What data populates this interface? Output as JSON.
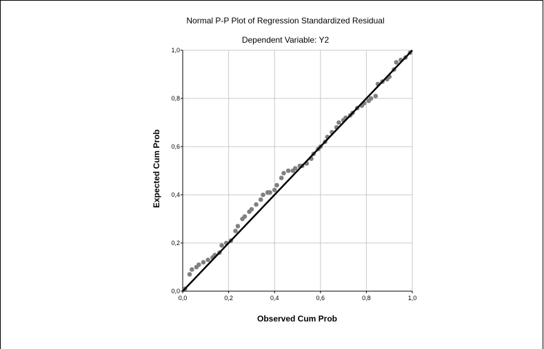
{
  "chart_data": {
    "type": "scatter",
    "title": "Normal P-P Plot of Regression Standardized Residual",
    "subtitle": "Dependent Variable: Y2",
    "xlabel": "Observed Cum Prob",
    "ylabel": "Expected Cum Prob",
    "xlim": [
      0,
      1
    ],
    "ylim": [
      0,
      1
    ],
    "x_ticks": [
      "0,0",
      "0,2",
      "0,4",
      "0,6",
      "0,8",
      "1,0"
    ],
    "y_ticks": [
      "0,0",
      "0,2",
      "0,4",
      "0,6",
      "0,8",
      "1,0"
    ],
    "grid": true,
    "reference_line": [
      [
        0,
        0
      ],
      [
        1,
        1
      ]
    ],
    "point_color": "#808080",
    "line_color": "#000000",
    "points": [
      [
        0.01,
        0.01
      ],
      [
        0.03,
        0.07
      ],
      [
        0.04,
        0.09
      ],
      [
        0.06,
        0.1
      ],
      [
        0.07,
        0.11
      ],
      [
        0.09,
        0.12
      ],
      [
        0.11,
        0.13
      ],
      [
        0.13,
        0.14
      ],
      [
        0.14,
        0.15
      ],
      [
        0.16,
        0.16
      ],
      [
        0.17,
        0.19
      ],
      [
        0.19,
        0.2
      ],
      [
        0.21,
        0.21
      ],
      [
        0.23,
        0.25
      ],
      [
        0.24,
        0.27
      ],
      [
        0.26,
        0.3
      ],
      [
        0.27,
        0.31
      ],
      [
        0.29,
        0.33
      ],
      [
        0.3,
        0.34
      ],
      [
        0.32,
        0.36
      ],
      [
        0.34,
        0.38
      ],
      [
        0.35,
        0.4
      ],
      [
        0.37,
        0.41
      ],
      [
        0.38,
        0.41
      ],
      [
        0.4,
        0.42
      ],
      [
        0.41,
        0.44
      ],
      [
        0.43,
        0.47
      ],
      [
        0.44,
        0.49
      ],
      [
        0.46,
        0.5
      ],
      [
        0.48,
        0.5
      ],
      [
        0.49,
        0.51
      ],
      [
        0.51,
        0.52
      ],
      [
        0.52,
        0.52
      ],
      [
        0.54,
        0.53
      ],
      [
        0.56,
        0.55
      ],
      [
        0.57,
        0.57
      ],
      [
        0.59,
        0.59
      ],
      [
        0.6,
        0.6
      ],
      [
        0.62,
        0.62
      ],
      [
        0.63,
        0.64
      ],
      [
        0.65,
        0.66
      ],
      [
        0.67,
        0.68
      ],
      [
        0.68,
        0.7
      ],
      [
        0.7,
        0.71
      ],
      [
        0.71,
        0.72
      ],
      [
        0.73,
        0.73
      ],
      [
        0.74,
        0.74
      ],
      [
        0.76,
        0.76
      ],
      [
        0.78,
        0.77
      ],
      [
        0.79,
        0.78
      ],
      [
        0.81,
        0.79
      ],
      [
        0.82,
        0.8
      ],
      [
        0.84,
        0.81
      ],
      [
        0.85,
        0.86
      ],
      [
        0.87,
        0.87
      ],
      [
        0.89,
        0.88
      ],
      [
        0.9,
        0.89
      ],
      [
        0.92,
        0.92
      ],
      [
        0.93,
        0.95
      ],
      [
        0.95,
        0.96
      ],
      [
        0.97,
        0.97
      ],
      [
        0.99,
        0.99
      ]
    ]
  }
}
